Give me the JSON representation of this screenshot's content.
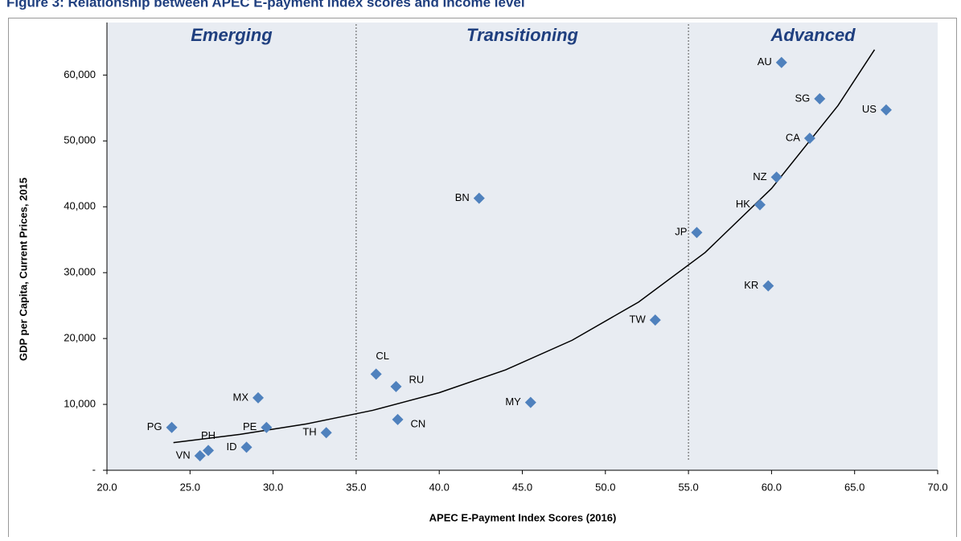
{
  "chart_data": {
    "type": "scatter",
    "title": "Figure 3: Relationship between APEC E-payment index scores and income level",
    "xlabel": "APEC E-Payment Index Scores (2016)",
    "ylabel": "GDP per Capita,  Current Prices, 2015",
    "labels": [
      "PG",
      "VN",
      "PH",
      "ID",
      "MX",
      "PE",
      "TH",
      "CL",
      "RU",
      "CN",
      "BN",
      "MY",
      "TW",
      "JP",
      "KR",
      "HK",
      "NZ",
      "CA",
      "SG",
      "AU",
      "US"
    ],
    "x": [
      23.9,
      25.6,
      26.1,
      28.4,
      29.1,
      29.6,
      33.2,
      36.2,
      37.4,
      37.5,
      42.4,
      45.5,
      53.0,
      55.5,
      59.8,
      59.3,
      60.3,
      62.3,
      62.9,
      60.6,
      66.9
    ],
    "values": [
      6500,
      2200,
      3000,
      3500,
      11000,
      6500,
      5700,
      14600,
      12700,
      7700,
      41300,
      10300,
      22800,
      36100,
      28000,
      40300,
      44500,
      50400,
      56400,
      61900,
      54700
    ],
    "color": "#4f81bd",
    "trendline": {
      "x": [
        24,
        28,
        32,
        36,
        40,
        44,
        48,
        52,
        56,
        60,
        64,
        66.2
      ],
      "y": [
        4200,
        5440,
        7030,
        9100,
        11780,
        15250,
        19740,
        25540,
        33050,
        42780,
        55370,
        63850
      ]
    },
    "dividers": [
      35,
      55
    ],
    "regions": [
      "Emerging",
      "Transitioning",
      "Advanced"
    ],
    "xlim": [
      20,
      70
    ],
    "xticks": [
      {
        "value": 20,
        "label": "20.0"
      },
      {
        "value": 25,
        "label": "25.0"
      },
      {
        "value": 30,
        "label": "30.0"
      },
      {
        "value": 35,
        "label": "35.0"
      },
      {
        "value": 40,
        "label": "40.0"
      },
      {
        "value": 45,
        "label": "45.0"
      },
      {
        "value": 50,
        "label": "50.0"
      },
      {
        "value": 55,
        "label": "55.0"
      },
      {
        "value": 60,
        "label": "60.0"
      },
      {
        "value": 65,
        "label": "65.0"
      },
      {
        "value": 70,
        "label": "70.0"
      }
    ],
    "ylim": [
      0,
      67000
    ],
    "yticks": [
      {
        "value": 0,
        "label": "-"
      },
      {
        "value": 10000,
        "label": "10,000"
      },
      {
        "value": 20000,
        "label": "20,000"
      },
      {
        "value": 30000,
        "label": "30,000"
      },
      {
        "value": 40000,
        "label": "40,000"
      },
      {
        "value": 50000,
        "label": "50,000"
      },
      {
        "value": 60000,
        "label": "60,000"
      }
    ]
  }
}
